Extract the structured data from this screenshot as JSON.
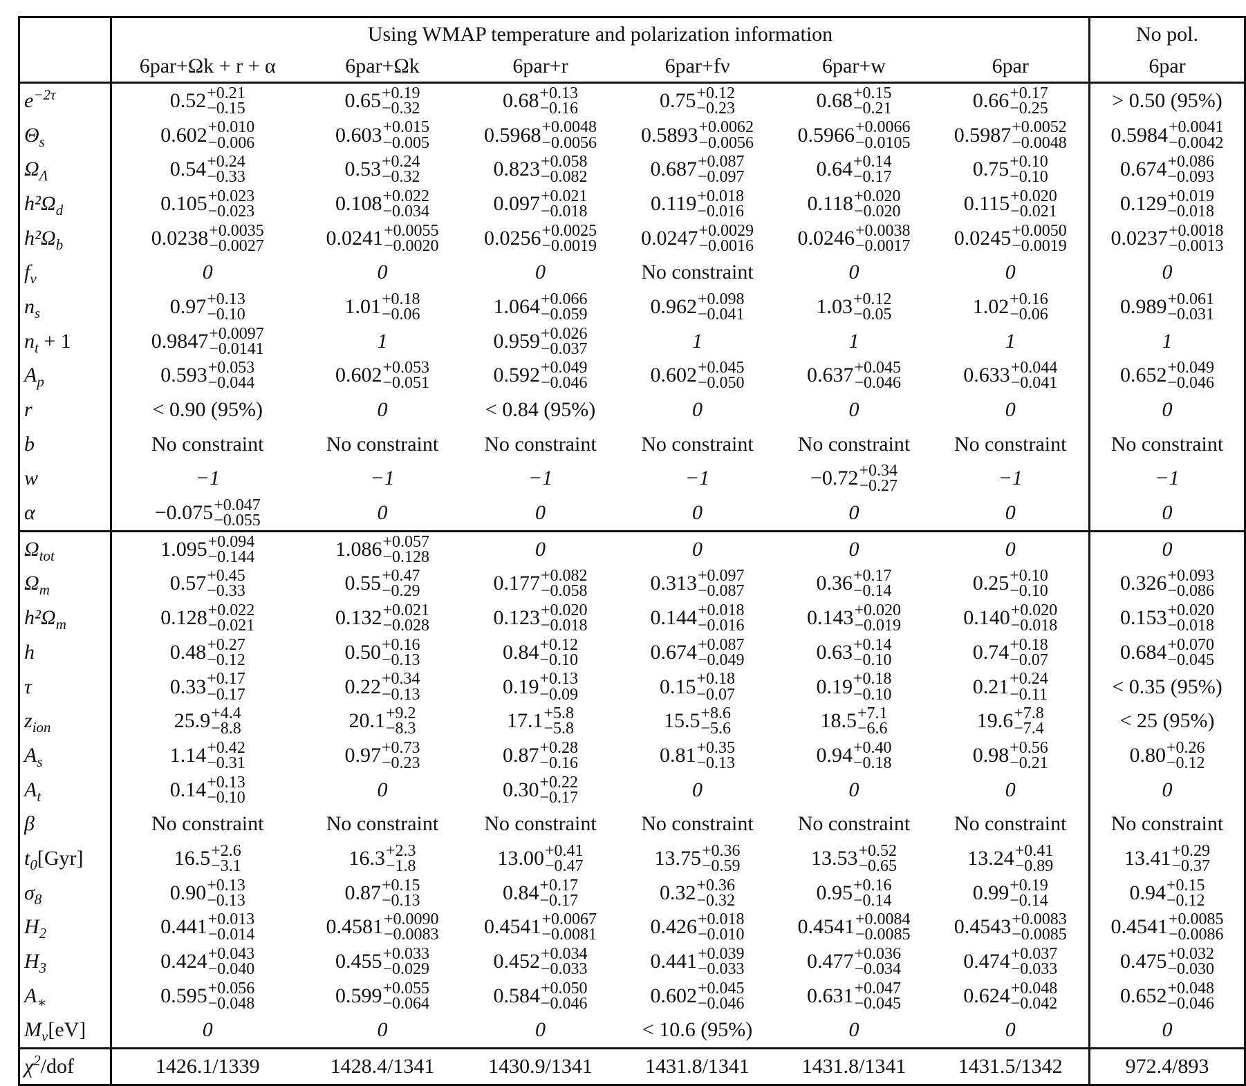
{
  "header": {
    "group_label": "Using WMAP temperature and polarization information",
    "nopol_label": "No pol.",
    "columns": [
      "6par+Ωk + r + α",
      "6par+Ωk",
      "6par+r",
      "6par+fν",
      "6par+w",
      "6par",
      "6par"
    ]
  },
  "params": [
    {
      "label": {
        "base": "e",
        "sup": "−2τ",
        "sub": ""
      },
      "cells": [
        [
          "0.52",
          "+0.21",
          "−0.15"
        ],
        [
          "0.65",
          "+0.19",
          "−0.32"
        ],
        [
          "0.68",
          "+0.13",
          "−0.16"
        ],
        [
          "0.75",
          "+0.12",
          "−0.23"
        ],
        [
          "0.68",
          "+0.15",
          "−0.21"
        ],
        [
          "0.66",
          "+0.17",
          "−0.25"
        ],
        "> 0.50  (95%)"
      ]
    },
    {
      "label": {
        "base": "Θ",
        "sup": "",
        "sub": "s"
      },
      "cells": [
        [
          "0.602",
          "+0.010",
          "−0.006"
        ],
        [
          "0.603",
          "+0.015",
          "−0.005"
        ],
        [
          "0.5968",
          "+0.0048",
          "−0.0056"
        ],
        [
          "0.5893",
          "+0.0062",
          "−0.0056"
        ],
        [
          "0.5966",
          "+0.0066",
          "−0.0105"
        ],
        [
          "0.5987",
          "+0.0052",
          "−0.0048"
        ],
        [
          "0.5984",
          "+0.0041",
          "−0.0042"
        ]
      ]
    },
    {
      "label": {
        "base": "Ω",
        "sup": "",
        "sub": "Λ"
      },
      "cells": [
        [
          "0.54",
          "+0.24",
          "−0.33"
        ],
        [
          "0.53",
          "+0.24",
          "−0.32"
        ],
        [
          "0.823",
          "+0.058",
          "−0.082"
        ],
        [
          "0.687",
          "+0.087",
          "−0.097"
        ],
        [
          "0.64",
          "+0.14",
          "−0.17"
        ],
        [
          "0.75",
          "+0.10",
          "−0.10"
        ],
        [
          "0.674",
          "+0.086",
          "−0.093"
        ]
      ]
    },
    {
      "label": {
        "base": "h²Ω",
        "sup": "",
        "sub": "d"
      },
      "cells": [
        [
          "0.105",
          "+0.023",
          "−0.023"
        ],
        [
          "0.108",
          "+0.022",
          "−0.034"
        ],
        [
          "0.097",
          "+0.021",
          "−0.018"
        ],
        [
          "0.119",
          "+0.018",
          "−0.016"
        ],
        [
          "0.118",
          "+0.020",
          "−0.020"
        ],
        [
          "0.115",
          "+0.020",
          "−0.021"
        ],
        [
          "0.129",
          "+0.019",
          "−0.018"
        ]
      ]
    },
    {
      "label": {
        "base": "h²Ω",
        "sup": "",
        "sub": "b"
      },
      "cells": [
        [
          "0.0238",
          "+0.0035",
          "−0.0027"
        ],
        [
          "0.0241",
          "+0.0055",
          "−0.0020"
        ],
        [
          "0.0256",
          "+0.0025",
          "−0.0019"
        ],
        [
          "0.0247",
          "+0.0029",
          "−0.0016"
        ],
        [
          "0.0246",
          "+0.0038",
          "−0.0017"
        ],
        [
          "0.0245",
          "+0.0050",
          "−0.0019"
        ],
        [
          "0.0237",
          "+0.0018",
          "−0.0013"
        ]
      ]
    },
    {
      "label": {
        "base": "f",
        "sup": "",
        "sub": "ν"
      },
      "cells": [
        "i:0",
        "i:0",
        "i:0",
        "No constraint",
        "i:0",
        "i:0",
        "i:0"
      ]
    },
    {
      "label": {
        "base": "n",
        "sup": "",
        "sub": "s"
      },
      "cells": [
        [
          "0.97",
          "+0.13",
          "−0.10"
        ],
        [
          "1.01",
          "+0.18",
          "−0.06"
        ],
        [
          "1.064",
          "+0.066",
          "−0.059"
        ],
        [
          "0.962",
          "+0.098",
          "−0.041"
        ],
        [
          "1.03",
          "+0.12",
          "−0.05"
        ],
        [
          "1.02",
          "+0.16",
          "−0.06"
        ],
        [
          "0.989",
          "+0.061",
          "−0.031"
        ]
      ]
    },
    {
      "label": {
        "base": "n",
        "sup": "",
        "sub": "t",
        "suffix": " + 1"
      },
      "cells": [
        [
          "0.9847",
          "+0.0097",
          "−0.0141"
        ],
        "i:1",
        [
          "0.959",
          "+0.026",
          "−0.037"
        ],
        "i:1",
        "i:1",
        "i:1",
        "i:1"
      ]
    },
    {
      "label": {
        "base": "A",
        "sup": "",
        "sub": "p"
      },
      "cells": [
        [
          "0.593",
          "+0.053",
          "−0.044"
        ],
        [
          "0.602",
          "+0.053",
          "−0.051"
        ],
        [
          "0.592",
          "+0.049",
          "−0.046"
        ],
        [
          "0.602",
          "+0.045",
          "−0.050"
        ],
        [
          "0.637",
          "+0.045",
          "−0.046"
        ],
        [
          "0.633",
          "+0.044",
          "−0.041"
        ],
        [
          "0.652",
          "+0.049",
          "−0.046"
        ]
      ]
    },
    {
      "label": {
        "base": "r",
        "sup": "",
        "sub": ""
      },
      "cells": [
        "< 0.90  (95%)",
        "i:0",
        "< 0.84  (95%)",
        "i:0",
        "i:0",
        "i:0",
        "i:0"
      ]
    },
    {
      "label": {
        "base": "b",
        "sup": "",
        "sub": ""
      },
      "cells": [
        "No constraint",
        "No constraint",
        "No constraint",
        "No constraint",
        "No constraint",
        "No constraint",
        "No constraint"
      ]
    },
    {
      "label": {
        "base": "w",
        "sup": "",
        "sub": ""
      },
      "cells": [
        "i:−1",
        "i:−1",
        "i:−1",
        "i:−1",
        [
          "−0.72",
          "+0.34",
          "−0.27"
        ],
        "i:−1",
        "i:−1"
      ]
    },
    {
      "label": {
        "base": "α",
        "sup": "",
        "sub": ""
      },
      "cells": [
        [
          "−0.075",
          "+0.047",
          "−0.055"
        ],
        "i:0",
        "i:0",
        "i:0",
        "i:0",
        "i:0",
        "i:0"
      ]
    }
  ],
  "derived": [
    {
      "label": {
        "base": "Ω",
        "sup": "",
        "sub": "tot"
      },
      "cells": [
        [
          "1.095",
          "+0.094",
          "−0.144"
        ],
        [
          "1.086",
          "+0.057",
          "−0.128"
        ],
        "i:0",
        "i:0",
        "i:0",
        "i:0",
        "i:0"
      ]
    },
    {
      "label": {
        "base": "Ω",
        "sup": "",
        "sub": "m"
      },
      "cells": [
        [
          "0.57",
          "+0.45",
          "−0.33"
        ],
        [
          "0.55",
          "+0.47",
          "−0.29"
        ],
        [
          "0.177",
          "+0.082",
          "−0.058"
        ],
        [
          "0.313",
          "+0.097",
          "−0.087"
        ],
        [
          "0.36",
          "+0.17",
          "−0.14"
        ],
        [
          "0.25",
          "+0.10",
          "−0.10"
        ],
        [
          "0.326",
          "+0.093",
          "−0.086"
        ]
      ]
    },
    {
      "label": {
        "base": "h²Ω",
        "sup": "",
        "sub": "m"
      },
      "cells": [
        [
          "0.128",
          "+0.022",
          "−0.021"
        ],
        [
          "0.132",
          "+0.021",
          "−0.028"
        ],
        [
          "0.123",
          "+0.020",
          "−0.018"
        ],
        [
          "0.144",
          "+0.018",
          "−0.016"
        ],
        [
          "0.143",
          "+0.020",
          "−0.019"
        ],
        [
          "0.140",
          "+0.020",
          "−0.018"
        ],
        [
          "0.153",
          "+0.020",
          "−0.018"
        ]
      ]
    },
    {
      "label": {
        "base": "h",
        "sup": "",
        "sub": ""
      },
      "cells": [
        [
          "0.48",
          "+0.27",
          "−0.12"
        ],
        [
          "0.50",
          "+0.16",
          "−0.13"
        ],
        [
          "0.84",
          "+0.12",
          "−0.10"
        ],
        [
          "0.674",
          "+0.087",
          "−0.049"
        ],
        [
          "0.63",
          "+0.14",
          "−0.10"
        ],
        [
          "0.74",
          "+0.18",
          "−0.07"
        ],
        [
          "0.684",
          "+0.070",
          "−0.045"
        ]
      ]
    },
    {
      "label": {
        "base": "τ",
        "sup": "",
        "sub": ""
      },
      "cells": [
        [
          "0.33",
          "+0.17",
          "−0.17"
        ],
        [
          "0.22",
          "+0.34",
          "−0.13"
        ],
        [
          "0.19",
          "+0.13",
          "−0.09"
        ],
        [
          "0.15",
          "+0.18",
          "−0.07"
        ],
        [
          "0.19",
          "+0.18",
          "−0.10"
        ],
        [
          "0.21",
          "+0.24",
          "−0.11"
        ],
        "< 0.35  (95%)"
      ]
    },
    {
      "label": {
        "base": "z",
        "sup": "",
        "sub": "ion"
      },
      "cells": [
        [
          "25.9",
          "+4.4",
          "−8.8"
        ],
        [
          "20.1",
          "+9.2",
          "−8.3"
        ],
        [
          "17.1",
          "+5.8",
          "−5.8"
        ],
        [
          "15.5",
          "+8.6",
          "−5.6"
        ],
        [
          "18.5",
          "+7.1",
          "−6.6"
        ],
        [
          "19.6",
          "+7.8",
          "−7.4"
        ],
        "< 25  (95%)"
      ]
    },
    {
      "label": {
        "base": "A",
        "sup": "",
        "sub": "s"
      },
      "cells": [
        [
          "1.14",
          "+0.42",
          "−0.31"
        ],
        [
          "0.97",
          "+0.73",
          "−0.23"
        ],
        [
          "0.87",
          "+0.28",
          "−0.16"
        ],
        [
          "0.81",
          "+0.35",
          "−0.13"
        ],
        [
          "0.94",
          "+0.40",
          "−0.18"
        ],
        [
          "0.98",
          "+0.56",
          "−0.21"
        ],
        [
          "0.80",
          "+0.26",
          "−0.12"
        ]
      ]
    },
    {
      "label": {
        "base": "A",
        "sup": "",
        "sub": "t"
      },
      "cells": [
        [
          "0.14",
          "+0.13",
          "−0.10"
        ],
        "i:0",
        [
          "0.30",
          "+0.22",
          "−0.17"
        ],
        "i:0",
        "i:0",
        "i:0",
        "i:0"
      ]
    },
    {
      "label": {
        "base": "β",
        "sup": "",
        "sub": ""
      },
      "cells": [
        "No constraint",
        "No constraint",
        "No constraint",
        "No constraint",
        "No constraint",
        "No constraint",
        "No constraint"
      ]
    },
    {
      "label": {
        "base": "t",
        "sup": "",
        "sub": "0",
        "suffix": "[Gyr]"
      },
      "cells": [
        [
          "16.5",
          "+2.6",
          "−3.1"
        ],
        [
          "16.3",
          "+2.3",
          "−1.8"
        ],
        [
          "13.00",
          "+0.41",
          "−0.47"
        ],
        [
          "13.75",
          "+0.36",
          "−0.59"
        ],
        [
          "13.53",
          "+0.52",
          "−0.65"
        ],
        [
          "13.24",
          "+0.41",
          "−0.89"
        ],
        [
          "13.41",
          "+0.29",
          "−0.37"
        ]
      ]
    },
    {
      "label": {
        "base": "σ",
        "sup": "",
        "sub": "8"
      },
      "cells": [
        [
          "0.90",
          "+0.13",
          "−0.13"
        ],
        [
          "0.87",
          "+0.15",
          "−0.13"
        ],
        [
          "0.84",
          "+0.17",
          "−0.17"
        ],
        [
          "0.32",
          "+0.36",
          "−0.32"
        ],
        [
          "0.95",
          "+0.16",
          "−0.14"
        ],
        [
          "0.99",
          "+0.19",
          "−0.14"
        ],
        [
          "0.94",
          "+0.15",
          "−0.12"
        ]
      ]
    },
    {
      "label": {
        "base": "H",
        "sup": "",
        "sub": "2"
      },
      "cells": [
        [
          "0.441",
          "+0.013",
          "−0.014"
        ],
        [
          "0.4581",
          "+0.0090",
          "−0.0083"
        ],
        [
          "0.4541",
          "+0.0067",
          "−0.0081"
        ],
        [
          "0.426",
          "+0.018",
          "−0.010"
        ],
        [
          "0.4541",
          "+0.0084",
          "−0.0085"
        ],
        [
          "0.4543",
          "+0.0083",
          "−0.0085"
        ],
        [
          "0.4541",
          "+0.0085",
          "−0.0086"
        ]
      ]
    },
    {
      "label": {
        "base": "H",
        "sup": "",
        "sub": "3"
      },
      "cells": [
        [
          "0.424",
          "+0.043",
          "−0.040"
        ],
        [
          "0.455",
          "+0.033",
          "−0.029"
        ],
        [
          "0.452",
          "+0.034",
          "−0.033"
        ],
        [
          "0.441",
          "+0.039",
          "−0.033"
        ],
        [
          "0.477",
          "+0.036",
          "−0.034"
        ],
        [
          "0.474",
          "+0.037",
          "−0.033"
        ],
        [
          "0.475",
          "+0.032",
          "−0.030"
        ]
      ]
    },
    {
      "label": {
        "base": "A",
        "sup": "",
        "sub": "∗"
      },
      "cells": [
        [
          "0.595",
          "+0.056",
          "−0.048"
        ],
        [
          "0.599",
          "+0.055",
          "−0.064"
        ],
        [
          "0.584",
          "+0.050",
          "−0.046"
        ],
        [
          "0.602",
          "+0.045",
          "−0.046"
        ],
        [
          "0.631",
          "+0.047",
          "−0.045"
        ],
        [
          "0.624",
          "+0.048",
          "−0.042"
        ],
        [
          "0.652",
          "+0.048",
          "−0.046"
        ]
      ]
    },
    {
      "label": {
        "base": "M",
        "sup": "",
        "sub": "ν",
        "suffix": "[eV]"
      },
      "cells": [
        "i:0",
        "i:0",
        "i:0",
        "< 10.6  (95%)",
        "i:0",
        "i:0",
        "i:0"
      ]
    }
  ],
  "chi2": {
    "label": {
      "base": "χ",
      "sup": "2",
      "sub": "",
      "suffix": "/dof"
    },
    "cells": [
      "1426.1/1339",
      "1428.4/1341",
      "1430.9/1341",
      "1431.8/1341",
      "1431.8/1341",
      "1431.5/1342",
      "972.4/893"
    ]
  }
}
